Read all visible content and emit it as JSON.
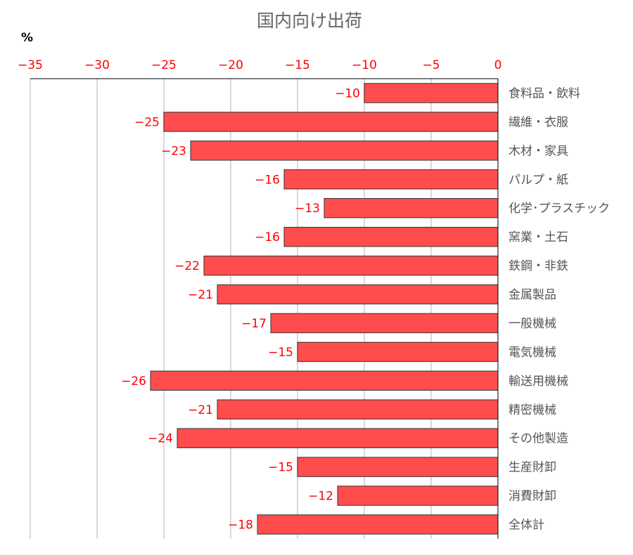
{
  "chart_data": {
    "type": "bar",
    "orientation": "horizontal",
    "title": "国内向け出荷",
    "unit": "%",
    "xlim": [
      -35,
      0
    ],
    "x_ticks": [
      -35,
      -30,
      -25,
      -20,
      -15,
      -10,
      -5,
      0
    ],
    "grid": true,
    "categories": [
      "食料品・飲料",
      "繊維・衣服",
      "木材・家具",
      "パルプ・紙",
      "化学･プラスチック",
      "窯業・土石",
      "鉄鋼・非鉄",
      "金属製品",
      "一般機械",
      "電気機械",
      "輸送用機械",
      "精密機械",
      "その他製造",
      "生産財卸",
      "消費財卸",
      "全体計"
    ],
    "values": [
      -10,
      -25,
      -23,
      -16,
      -13,
      -16,
      -22,
      -21,
      -17,
      -15,
      -26,
      -21,
      -24,
      -15,
      -12,
      -18
    ],
    "bar_color": "#ff4d4d",
    "label_color": "#ff0000",
    "tick_color": "#ff0000"
  }
}
